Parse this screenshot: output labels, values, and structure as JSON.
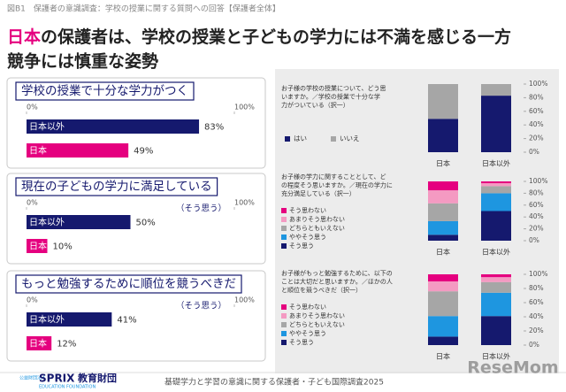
{
  "header": "図B1　保護者の意識調査：学校の授業に関する質問への回答【保護者全体】",
  "title": {
    "highlight": "日本",
    "line1": "の保護者は、学校の授業と子どもの学力には不満を感じる一方",
    "line2": "競争には慎重な姿勢"
  },
  "chart_data": [
    {
      "type": "hbar",
      "title": "学校の授業で十分な学力がつく",
      "categories": [
        "日本以外",
        "日本"
      ],
      "values": [
        83,
        49
      ],
      "value_labels": [
        "83%",
        "49%"
      ],
      "colors": [
        "#15196e",
        "#e5007f"
      ],
      "xlim": [
        0,
        100
      ],
      "xticks": [
        {
          "value": 0,
          "label": "0%"
        },
        {
          "value": 100,
          "label": "100%"
        }
      ]
    },
    {
      "type": "hbar",
      "title": "現在の子どもの学力に満足している",
      "note": "（そう思う）",
      "categories": [
        "日本以外",
        "日本"
      ],
      "values": [
        50,
        10
      ],
      "value_labels": [
        "50%",
        "10%"
      ],
      "colors": [
        "#15196e",
        "#e5007f"
      ],
      "xlim": [
        0,
        100
      ],
      "xticks": [
        {
          "value": 0,
          "label": "0%"
        },
        {
          "value": 100,
          "label": "100%"
        }
      ]
    },
    {
      "type": "hbar",
      "title": "もっと勉強するために順位を競うべきだ",
      "note": "（そう思う）",
      "categories": [
        "日本以外",
        "日本"
      ],
      "values": [
        41,
        12
      ],
      "value_labels": [
        "41%",
        "12%"
      ],
      "colors": [
        "#15196e",
        "#e5007f"
      ],
      "xlim": [
        0,
        100
      ],
      "xticks": [
        {
          "value": 0,
          "label": "0%"
        },
        {
          "value": 100,
          "label": "100%"
        }
      ]
    },
    {
      "type": "stacked_bar",
      "question_lines": [
        "お子様の学校の授業について、どう思",
        "いますか。／学校の授業で十分な学",
        "力がついている（択一）"
      ],
      "categories": [
        "日本",
        "日本以外"
      ],
      "legend": "horizontal",
      "series": [
        {
          "name": "はい",
          "color": "#15196e",
          "values": [
            49,
            83
          ]
        },
        {
          "name": "いいえ",
          "color": "#a6a6a6",
          "values": [
            51,
            17
          ]
        }
      ],
      "ylim": [
        0,
        100
      ],
      "yticks": [
        {
          "value": 0,
          "label": "0%"
        },
        {
          "value": 20,
          "label": "20%"
        },
        {
          "value": 40,
          "label": "40%"
        },
        {
          "value": 60,
          "label": "60%"
        },
        {
          "value": 80,
          "label": "80%"
        },
        {
          "value": 100,
          "label": "100%"
        }
      ]
    },
    {
      "type": "stacked_bar",
      "question_lines": [
        "お子様の学力に関することとして、ど",
        "の程度そう思いますか。／現在の学力に",
        "充分満足している（択一）"
      ],
      "categories": [
        "日本",
        "日本以外"
      ],
      "legend": "vertical",
      "series": [
        {
          "name": "そう思う",
          "color": "#15196e",
          "values": [
            10,
            50
          ]
        },
        {
          "name": "ややそう思う",
          "color": "#1e96e0",
          "values": [
            23,
            30
          ]
        },
        {
          "name": "どちらともいえない",
          "color": "#a6a6a6",
          "values": [
            30,
            12
          ]
        },
        {
          "name": "あまりそう思わない",
          "color": "#f49ac2",
          "values": [
            22,
            5
          ]
        },
        {
          "name": "そう思わない",
          "color": "#e5007f",
          "values": [
            15,
            3
          ]
        }
      ],
      "ylim": [
        0,
        100
      ],
      "yticks": [
        {
          "value": 0,
          "label": "0%"
        },
        {
          "value": 20,
          "label": "20%"
        },
        {
          "value": 40,
          "label": "40%"
        },
        {
          "value": 60,
          "label": "60%"
        },
        {
          "value": 80,
          "label": "80%"
        },
        {
          "value": 100,
          "label": "100%"
        }
      ]
    },
    {
      "type": "stacked_bar",
      "question_lines": [
        "お子様がもっと勉強するために、以下の",
        "ことは大切だと思いますか。／ほかの人",
        "と順位を競うべきだ（択一）"
      ],
      "categories": [
        "日本",
        "日本以外"
      ],
      "legend": "vertical",
      "series": [
        {
          "name": "そう思う",
          "color": "#15196e",
          "values": [
            12,
            41
          ]
        },
        {
          "name": "ややそう思う",
          "color": "#1e96e0",
          "values": [
            29,
            33
          ]
        },
        {
          "name": "どちらともいえない",
          "color": "#a6a6a6",
          "values": [
            35,
            15
          ]
        },
        {
          "name": "あまりそう思わない",
          "color": "#f49ac2",
          "values": [
            14,
            7
          ]
        },
        {
          "name": "そう思わない",
          "color": "#e5007f",
          "values": [
            10,
            4
          ]
        }
      ],
      "ylim": [
        0,
        100
      ],
      "yticks": [
        {
          "value": 0,
          "label": "0%"
        },
        {
          "value": 20,
          "label": "20%"
        },
        {
          "value": 40,
          "label": "40%"
        },
        {
          "value": 60,
          "label": "60%"
        },
        {
          "value": 80,
          "label": "80%"
        },
        {
          "value": 100,
          "label": "100%"
        }
      ]
    }
  ],
  "footer": {
    "org_small": "公益財団法人",
    "org": "SPRIX",
    "org_jp": "教育財団",
    "org_en": "EDUCATION FOUNDATION",
    "source": "基礎学力と学習の意識に関する保護者・子ども国際調査2025",
    "watermark": "ReseMom"
  }
}
